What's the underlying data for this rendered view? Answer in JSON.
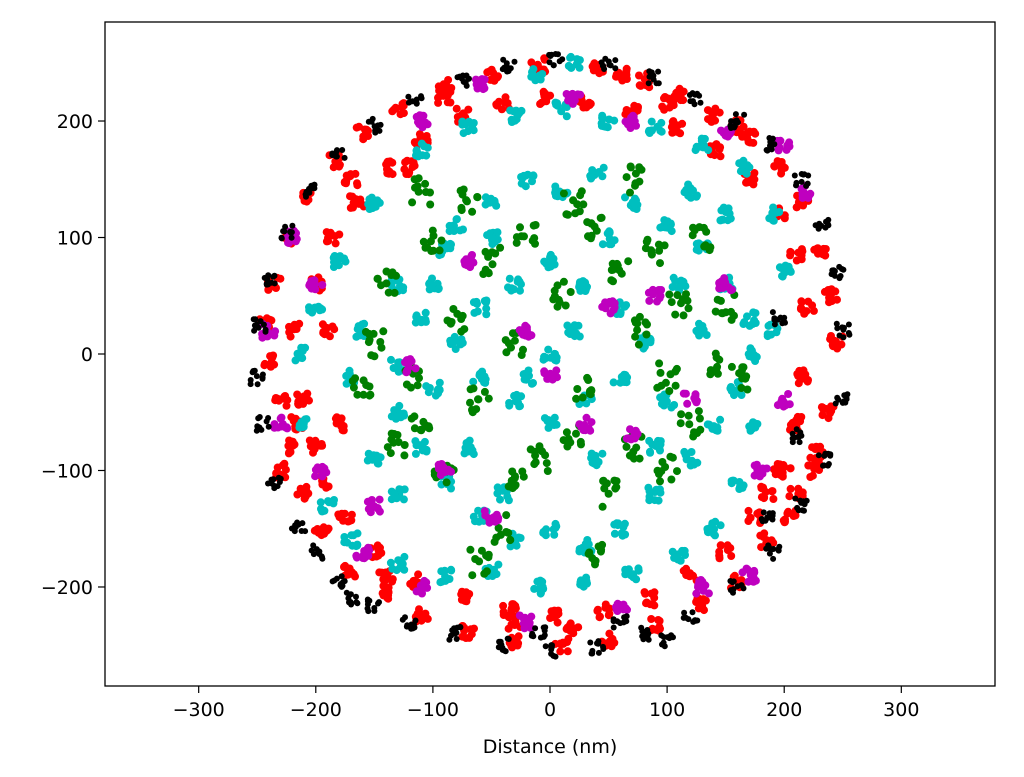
{
  "chart_data": {
    "type": "scatter",
    "title": "",
    "xlabel": "Distance (nm)",
    "ylabel": "",
    "xlim": [
      -380,
      380
    ],
    "ylim": [
      -285,
      285
    ],
    "xticks": [
      -300,
      -200,
      -100,
      0,
      100,
      200,
      300
    ],
    "yticks": [
      -200,
      -100,
      0,
      100,
      200
    ],
    "xtick_labels": [
      "−300",
      "−200",
      "−100",
      "0",
      "100",
      "200",
      "300"
    ],
    "ytick_labels": [
      "−200",
      "−100",
      "0",
      "100",
      "200"
    ],
    "grid": false,
    "legend": "none",
    "circle_radius": 255,
    "series": [
      {
        "color": "#ff0000",
        "points": [
          [
            -240,
            -5
          ],
          [
            -230,
            -40
          ],
          [
            -222,
            -80
          ],
          [
            -210,
            -120
          ],
          [
            -195,
            -150
          ],
          [
            -170,
            -185
          ],
          [
            -140,
            -205
          ],
          [
            -110,
            -225
          ],
          [
            -70,
            -238
          ],
          [
            -30,
            -248
          ],
          [
            10,
            -250
          ],
          [
            50,
            -245
          ],
          [
            90,
            -232
          ],
          [
            130,
            -215
          ],
          [
            160,
            -195
          ],
          [
            185,
            -160
          ],
          [
            210,
            -120
          ],
          [
            228,
            -85
          ],
          [
            238,
            -50
          ],
          [
            245,
            10
          ],
          [
            240,
            50
          ],
          [
            230,
            90
          ],
          [
            215,
            130
          ],
          [
            195,
            160
          ],
          [
            170,
            185
          ],
          [
            140,
            205
          ],
          [
            110,
            222
          ],
          [
            80,
            235
          ],
          [
            40,
            245
          ],
          [
            -10,
            248
          ],
          [
            -50,
            240
          ],
          [
            -90,
            230
          ],
          [
            -130,
            210
          ],
          [
            -160,
            190
          ],
          [
            -185,
            165
          ],
          [
            -205,
            135
          ],
          [
            -222,
            100
          ],
          [
            -235,
            60
          ],
          [
            -242,
            25
          ],
          [
            -210,
            -40
          ],
          [
            -200,
            -80
          ],
          [
            -190,
            20
          ],
          [
            -200,
            60
          ],
          [
            -185,
            100
          ],
          [
            -165,
            130
          ],
          [
            -140,
            160
          ],
          [
            -110,
            185
          ],
          [
            -75,
            205
          ],
          [
            -40,
            215
          ],
          [
            -5,
            220
          ],
          [
            30,
            215
          ],
          [
            70,
            210
          ],
          [
            110,
            195
          ],
          [
            140,
            175
          ],
          [
            170,
            150
          ],
          [
            195,
            120
          ],
          [
            210,
            85
          ],
          [
            220,
            40
          ],
          [
            215,
            -20
          ],
          [
            210,
            -60
          ],
          [
            195,
            -100
          ],
          [
            175,
            -140
          ],
          [
            150,
            -170
          ],
          [
            120,
            -190
          ],
          [
            85,
            -210
          ],
          [
            45,
            -220
          ],
          [
            5,
            -225
          ],
          [
            -35,
            -220
          ],
          [
            -75,
            -210
          ],
          [
            -115,
            -195
          ],
          [
            -150,
            -170
          ],
          [
            -175,
            -140
          ],
          [
            -195,
            -110
          ],
          [
            -215,
            -60
          ],
          [
            -220,
            20
          ],
          [
            200,
            -100
          ],
          [
            185,
            -120
          ],
          [
            205,
            -140
          ],
          [
            225,
            -100
          ],
          [
            -230,
            -100
          ],
          [
            -180,
            -60
          ],
          [
            -170,
            150
          ],
          [
            -120,
            160
          ],
          [
            -90,
            220
          ],
          [
            60,
            240
          ],
          [
            100,
            215
          ],
          [
            160,
            195
          ],
          [
            -30,
            -230
          ],
          [
            20,
            -235
          ],
          [
            -140,
            -190
          ]
        ]
      },
      {
        "color": "#00bfbf",
        "points": [
          [
            -130,
            -10
          ],
          [
            -110,
            30
          ],
          [
            -100,
            60
          ],
          [
            -80,
            110
          ],
          [
            -50,
            130
          ],
          [
            -20,
            150
          ],
          [
            10,
            140
          ],
          [
            40,
            155
          ],
          [
            70,
            130
          ],
          [
            100,
            110
          ],
          [
            130,
            90
          ],
          [
            150,
            60
          ],
          [
            170,
            30
          ],
          [
            175,
            0
          ],
          [
            160,
            -30
          ],
          [
            140,
            -60
          ],
          [
            120,
            -90
          ],
          [
            90,
            -120
          ],
          [
            60,
            -150
          ],
          [
            30,
            -165
          ],
          [
            0,
            -150
          ],
          [
            -30,
            -160
          ],
          [
            -60,
            -140
          ],
          [
            -90,
            -110
          ],
          [
            -110,
            -80
          ],
          [
            -130,
            -50
          ],
          [
            -60,
            40
          ],
          [
            -30,
            60
          ],
          [
            0,
            80
          ],
          [
            30,
            60
          ],
          [
            60,
            40
          ],
          [
            80,
            10
          ],
          [
            60,
            -20
          ],
          [
            30,
            -40
          ],
          [
            0,
            -60
          ],
          [
            -30,
            -40
          ],
          [
            -60,
            -20
          ],
          [
            -80,
            10
          ],
          [
            0,
            0
          ],
          [
            20,
            20
          ],
          [
            -20,
            -20
          ],
          [
            -200,
            40
          ],
          [
            -215,
            0
          ],
          [
            -210,
            -60
          ],
          [
            -190,
            -130
          ],
          [
            -170,
            -160
          ],
          [
            -130,
            -180
          ],
          [
            -90,
            -190
          ],
          [
            -50,
            -185
          ],
          [
            -10,
            -200
          ],
          [
            30,
            -195
          ],
          [
            70,
            -190
          ],
          [
            110,
            -175
          ],
          [
            140,
            -150
          ],
          [
            160,
            -110
          ],
          [
            175,
            -60
          ],
          [
            190,
            20
          ],
          [
            200,
            70
          ],
          [
            190,
            120
          ],
          [
            165,
            160
          ],
          [
            130,
            180
          ],
          [
            90,
            195
          ],
          [
            50,
            200
          ],
          [
            10,
            210
          ],
          [
            -30,
            205
          ],
          [
            -70,
            195
          ],
          [
            -110,
            175
          ],
          [
            -150,
            130
          ],
          [
            -180,
            80
          ],
          [
            -160,
            20
          ],
          [
            -170,
            -20
          ],
          [
            -150,
            -90
          ],
          [
            -130,
            -120
          ],
          [
            150,
            120
          ],
          [
            120,
            140
          ],
          [
            -10,
            240
          ],
          [
            20,
            250
          ],
          [
            -40,
            -120
          ],
          [
            40,
            -90
          ],
          [
            -50,
            100
          ],
          [
            50,
            100
          ],
          [
            100,
            -40
          ],
          [
            -100,
            -30
          ],
          [
            130,
            20
          ],
          [
            -130,
            60
          ],
          [
            110,
            60
          ],
          [
            -90,
            90
          ],
          [
            90,
            -80
          ],
          [
            -70,
            -80
          ]
        ]
      },
      {
        "color": "#007f00",
        "points": [
          [
            -140,
            60
          ],
          [
            -120,
            -20
          ],
          [
            -110,
            -60
          ],
          [
            -100,
            100
          ],
          [
            -80,
            30
          ],
          [
            -60,
            -40
          ],
          [
            -50,
            80
          ],
          [
            -30,
            10
          ],
          [
            -10,
            -90
          ],
          [
            10,
            50
          ],
          [
            30,
            -30
          ],
          [
            40,
            110
          ],
          [
            60,
            70
          ],
          [
            70,
            -80
          ],
          [
            80,
            20
          ],
          [
            100,
            -20
          ],
          [
            110,
            40
          ],
          [
            120,
            -60
          ],
          [
            130,
            100
          ],
          [
            140,
            -10
          ],
          [
            150,
            40
          ],
          [
            -90,
            -100
          ],
          [
            -70,
            130
          ],
          [
            -40,
            -150
          ],
          [
            20,
            130
          ],
          [
            50,
            -120
          ],
          [
            90,
            90
          ],
          [
            -150,
            10
          ],
          [
            -160,
            -30
          ],
          [
            160,
            -20
          ],
          [
            20,
            -70
          ],
          [
            -20,
            100
          ],
          [
            70,
            150
          ],
          [
            -110,
            140
          ],
          [
            100,
            -100
          ],
          [
            -30,
            -110
          ],
          [
            -130,
            -80
          ],
          [
            40,
            -170
          ],
          [
            -60,
            -180
          ]
        ]
      },
      {
        "color": "#bf00bf",
        "points": [
          [
            -220,
            100
          ],
          [
            -200,
            60
          ],
          [
            -195,
            -100
          ],
          [
            -150,
            -130
          ],
          [
            -120,
            -10
          ],
          [
            -90,
            -100
          ],
          [
            -70,
            80
          ],
          [
            -50,
            -140
          ],
          [
            -20,
            20
          ],
          [
            0,
            -20
          ],
          [
            30,
            -60
          ],
          [
            50,
            40
          ],
          [
            70,
            -70
          ],
          [
            90,
            50
          ],
          [
            120,
            -40
          ],
          [
            150,
            60
          ],
          [
            180,
            -100
          ],
          [
            200,
            -40
          ],
          [
            220,
            140
          ],
          [
            200,
            180
          ],
          [
            170,
            -190
          ],
          [
            130,
            -200
          ],
          [
            60,
            -220
          ],
          [
            -20,
            -230
          ],
          [
            -110,
            -200
          ],
          [
            -160,
            -170
          ],
          [
            -240,
            20
          ],
          [
            -230,
            -60
          ],
          [
            -110,
            200
          ],
          [
            -60,
            230
          ],
          [
            20,
            220
          ],
          [
            70,
            200
          ],
          [
            150,
            190
          ]
        ]
      },
      {
        "color": "#000000",
        "points": [
          [
            -250,
            -20
          ],
          [
            -245,
            -60
          ],
          [
            -235,
            -110
          ],
          [
            -215,
            -150
          ],
          [
            -180,
            -195
          ],
          [
            -150,
            -215
          ],
          [
            -120,
            -230
          ],
          [
            -80,
            -240
          ],
          [
            -40,
            -250
          ],
          [
            0,
            -255
          ],
          [
            40,
            -252
          ],
          [
            80,
            -240
          ],
          [
            120,
            -225
          ],
          [
            160,
            -200
          ],
          [
            190,
            -170
          ],
          [
            215,
            -130
          ],
          [
            235,
            -90
          ],
          [
            248,
            -40
          ],
          [
            250,
            20
          ],
          [
            245,
            70
          ],
          [
            232,
            110
          ],
          [
            215,
            150
          ],
          [
            190,
            180
          ],
          [
            160,
            200
          ],
          [
            125,
            220
          ],
          [
            90,
            238
          ],
          [
            50,
            248
          ],
          [
            5,
            252
          ],
          [
            -35,
            248
          ],
          [
            -75,
            236
          ],
          [
            -115,
            218
          ],
          [
            -150,
            196
          ],
          [
            -180,
            170
          ],
          [
            -205,
            140
          ],
          [
            -225,
            105
          ],
          [
            -240,
            65
          ],
          [
            -248,
            25
          ],
          [
            210,
            -70
          ],
          [
            195,
            30
          ],
          [
            185,
            -140
          ],
          [
            -200,
            -170
          ],
          [
            -170,
            -210
          ],
          [
            100,
            -245
          ],
          [
            -10,
            -240
          ],
          [
            60,
            -230
          ]
        ]
      }
    ]
  }
}
